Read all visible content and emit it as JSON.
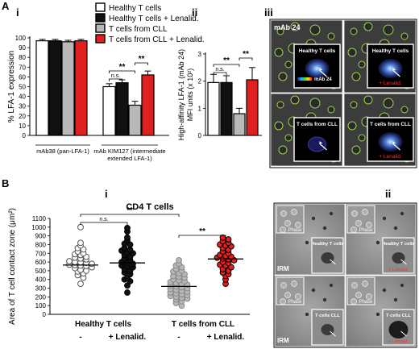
{
  "legend": {
    "items": [
      {
        "label": "Healthy T cells",
        "color": "#ffffff"
      },
      {
        "label": "Healthy T cells + Lenalid.",
        "color": "#111111"
      },
      {
        "label": "T cells from CLL",
        "color": "#b8b8b8"
      },
      {
        "label": "T cells from CLL + Lenalid.",
        "color": "#e02020"
      }
    ]
  },
  "panel_letters": {
    "A": "A",
    "B": "B"
  },
  "roman": {
    "i": "i",
    "ii": "ii",
    "iii": "iii"
  },
  "significance": {
    "ns": "n.s.",
    "star2": "**"
  },
  "micro_A": {
    "tag": "mAb 24",
    "scale_label": "mAb 24",
    "captions": [
      "Healthy T cells",
      "Healthy T cells",
      "T cells from CLL",
      "T cells from CLL"
    ],
    "lenalid": "+ Lenalid."
  },
  "micro_B": {
    "phase": "Phase",
    "irm": "IRM",
    "captions": [
      "Healthy T cells",
      "Healthy T cells",
      "T cells CLL",
      "T cells CLL"
    ],
    "lenalid": "+ Lenalid."
  },
  "chart_data": [
    {
      "type": "bar",
      "ylabel": "% LFA-1 expression",
      "ylim": [
        0,
        100
      ],
      "yticks": [
        0,
        10,
        20,
        30,
        40,
        50,
        60,
        70,
        80,
        90,
        100
      ],
      "groups": [
        "mAb38 (pan-LFA-1)",
        "mAb KIM127 (intermediate extended LFA-1)"
      ],
      "series": [
        {
          "name": "Healthy T cells",
          "values": [
            97,
            50
          ],
          "errors": [
            1.5,
            3
          ]
        },
        {
          "name": "Healthy T cells + Lenalid.",
          "values": [
            97,
            54
          ],
          "errors": [
            1.5,
            3
          ]
        },
        {
          "name": "T cells from CLL",
          "values": [
            96,
            31
          ],
          "errors": [
            1.5,
            4
          ]
        },
        {
          "name": "T cells from CLL + Lenalid.",
          "values": [
            97,
            62
          ],
          "errors": [
            1.5,
            4
          ]
        }
      ],
      "annotations": [
        {
          "text": "n.s.",
          "between": [
            0,
            1
          ]
        },
        {
          "text": "**",
          "between": [
            0,
            2
          ]
        },
        {
          "text": "**",
          "between": [
            2,
            3
          ]
        }
      ]
    },
    {
      "type": "bar",
      "ylabel": "High-affinity LFA-1 (mAb 24) MFI units (x 10²)",
      "ylim": [
        0,
        3
      ],
      "yticks": [
        0,
        1,
        2,
        3
      ],
      "categories": [
        "Healthy T cells",
        "Healthy T cells + Lenalid.",
        "T cells from CLL",
        "T cells from CLL + Lenalid."
      ],
      "values": [
        1.95,
        1.95,
        0.8,
        2.05
      ],
      "errors": [
        0.3,
        0.25,
        0.2,
        0.45
      ],
      "annotations": [
        {
          "text": "n.s.",
          "between": [
            0,
            1
          ]
        },
        {
          "text": "**",
          "between": [
            0,
            2
          ]
        },
        {
          "text": "**",
          "between": [
            2,
            3
          ]
        }
      ]
    },
    {
      "type": "scatter",
      "title": "CD4 T cells",
      "ylabel": "Area of T cell contact zone (μm²)",
      "ylim": [
        0,
        1100
      ],
      "yticks": [
        0,
        100,
        200,
        300,
        400,
        500,
        600,
        700,
        800,
        900,
        1000,
        1100
      ],
      "xgroups": [
        "Healthy T cells",
        "T cells from CLL"
      ],
      "xcats": [
        "-",
        "+ Lenalid.",
        "-",
        "+ Lenalid."
      ],
      "medians": [
        565,
        590,
        320,
        635
      ],
      "series": [
        {
          "name": "Healthy T cells",
          "values": [
            1000,
            820,
            790,
            760,
            745,
            720,
            700,
            690,
            680,
            660,
            650,
            640,
            630,
            610,
            600,
            595,
            590,
            580,
            570,
            565,
            560,
            555,
            540,
            530,
            510,
            500,
            490,
            470,
            450,
            420,
            350
          ]
        },
        {
          "name": "Healthy T cells + Lenalid.",
          "values": [
            990,
            950,
            880,
            850,
            810,
            800,
            760,
            740,
            730,
            710,
            700,
            680,
            660,
            640,
            620,
            600,
            590,
            580,
            560,
            550,
            540,
            520,
            500,
            480,
            460,
            420,
            400,
            380,
            330,
            250
          ]
        },
        {
          "name": "T cells from CLL",
          "values": [
            620,
            580,
            560,
            540,
            520,
            500,
            490,
            470,
            460,
            440,
            430,
            420,
            400,
            390,
            380,
            370,
            360,
            350,
            340,
            330,
            320,
            310,
            300,
            290,
            280,
            270,
            260,
            250,
            240,
            230,
            220,
            210,
            200,
            190,
            180,
            170,
            150,
            130,
            100
          ]
        },
        {
          "name": "T cells from CLL + Lenalid.",
          "values": [
            880,
            860,
            840,
            820,
            800,
            790,
            780,
            760,
            740,
            720,
            700,
            680,
            670,
            660,
            650,
            640,
            630,
            620,
            600,
            590,
            570,
            560,
            540,
            520,
            500,
            480,
            460,
            440,
            400,
            350
          ]
        }
      ],
      "annotations": [
        {
          "text": "n.s.",
          "between": [
            0,
            1
          ]
        },
        {
          "text": "**",
          "between": [
            0,
            2
          ]
        },
        {
          "text": "**",
          "between": [
            2,
            3
          ]
        }
      ]
    }
  ]
}
